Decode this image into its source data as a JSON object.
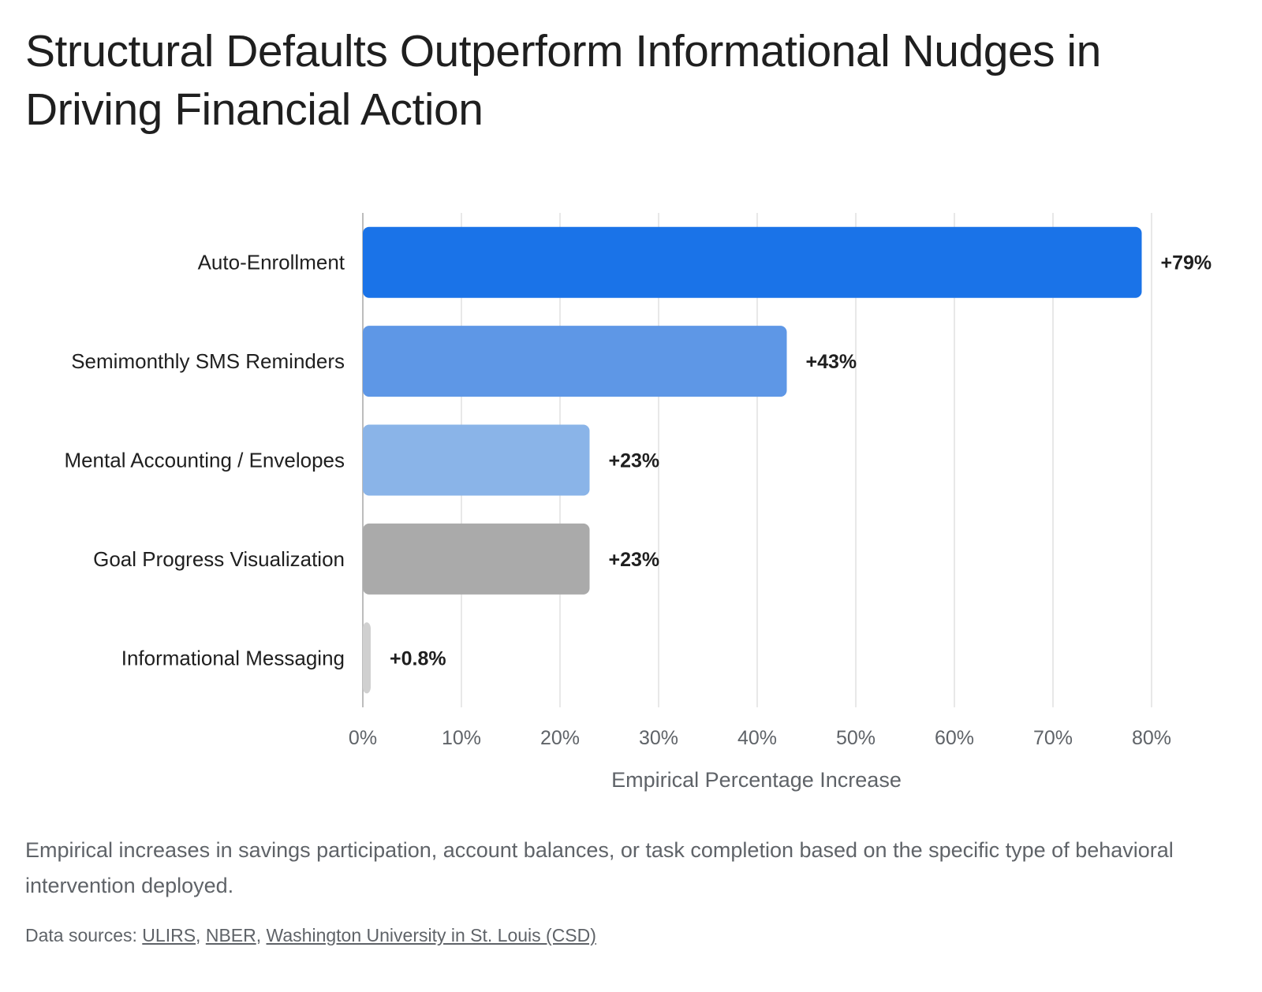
{
  "title": "Structural Defaults Outperform Informational Nudges in Driving Financial Action",
  "caption": "Empirical increases in savings participation, account balances, or task completion based on the specific type of behavioral intervention deployed.",
  "sources": {
    "prefix": "Data sources: ",
    "links": [
      "ULIRS",
      "NBER",
      "Washington University in St. Louis (CSD)"
    ],
    "separator": ", "
  },
  "chart_data": {
    "type": "bar",
    "orientation": "horizontal",
    "categories": [
      "Auto-Enrollment",
      "Semimonthly SMS Reminders",
      "Mental Accounting / Envelopes",
      "Goal Progress Visualization",
      "Informational Messaging"
    ],
    "values": [
      79,
      43,
      23,
      23,
      0.8
    ],
    "data_labels": [
      "+79%",
      "+43%",
      "+23%",
      "+23%",
      "+0.8%"
    ],
    "colors": [
      "#1a73e8",
      "#5e97e6",
      "#8ab4e8",
      "#aaaaaa",
      "#d0d0d0"
    ],
    "xlabel": "Empirical Percentage Increase",
    "ylabel": "",
    "xlim": [
      0,
      80
    ],
    "xticks": [
      0,
      10,
      20,
      30,
      40,
      50,
      60,
      70,
      80
    ],
    "xtick_labels": [
      "0%",
      "10%",
      "20%",
      "30%",
      "40%",
      "50%",
      "60%",
      "70%",
      "80%"
    ],
    "grid": "vertical",
    "legend": "none"
  }
}
